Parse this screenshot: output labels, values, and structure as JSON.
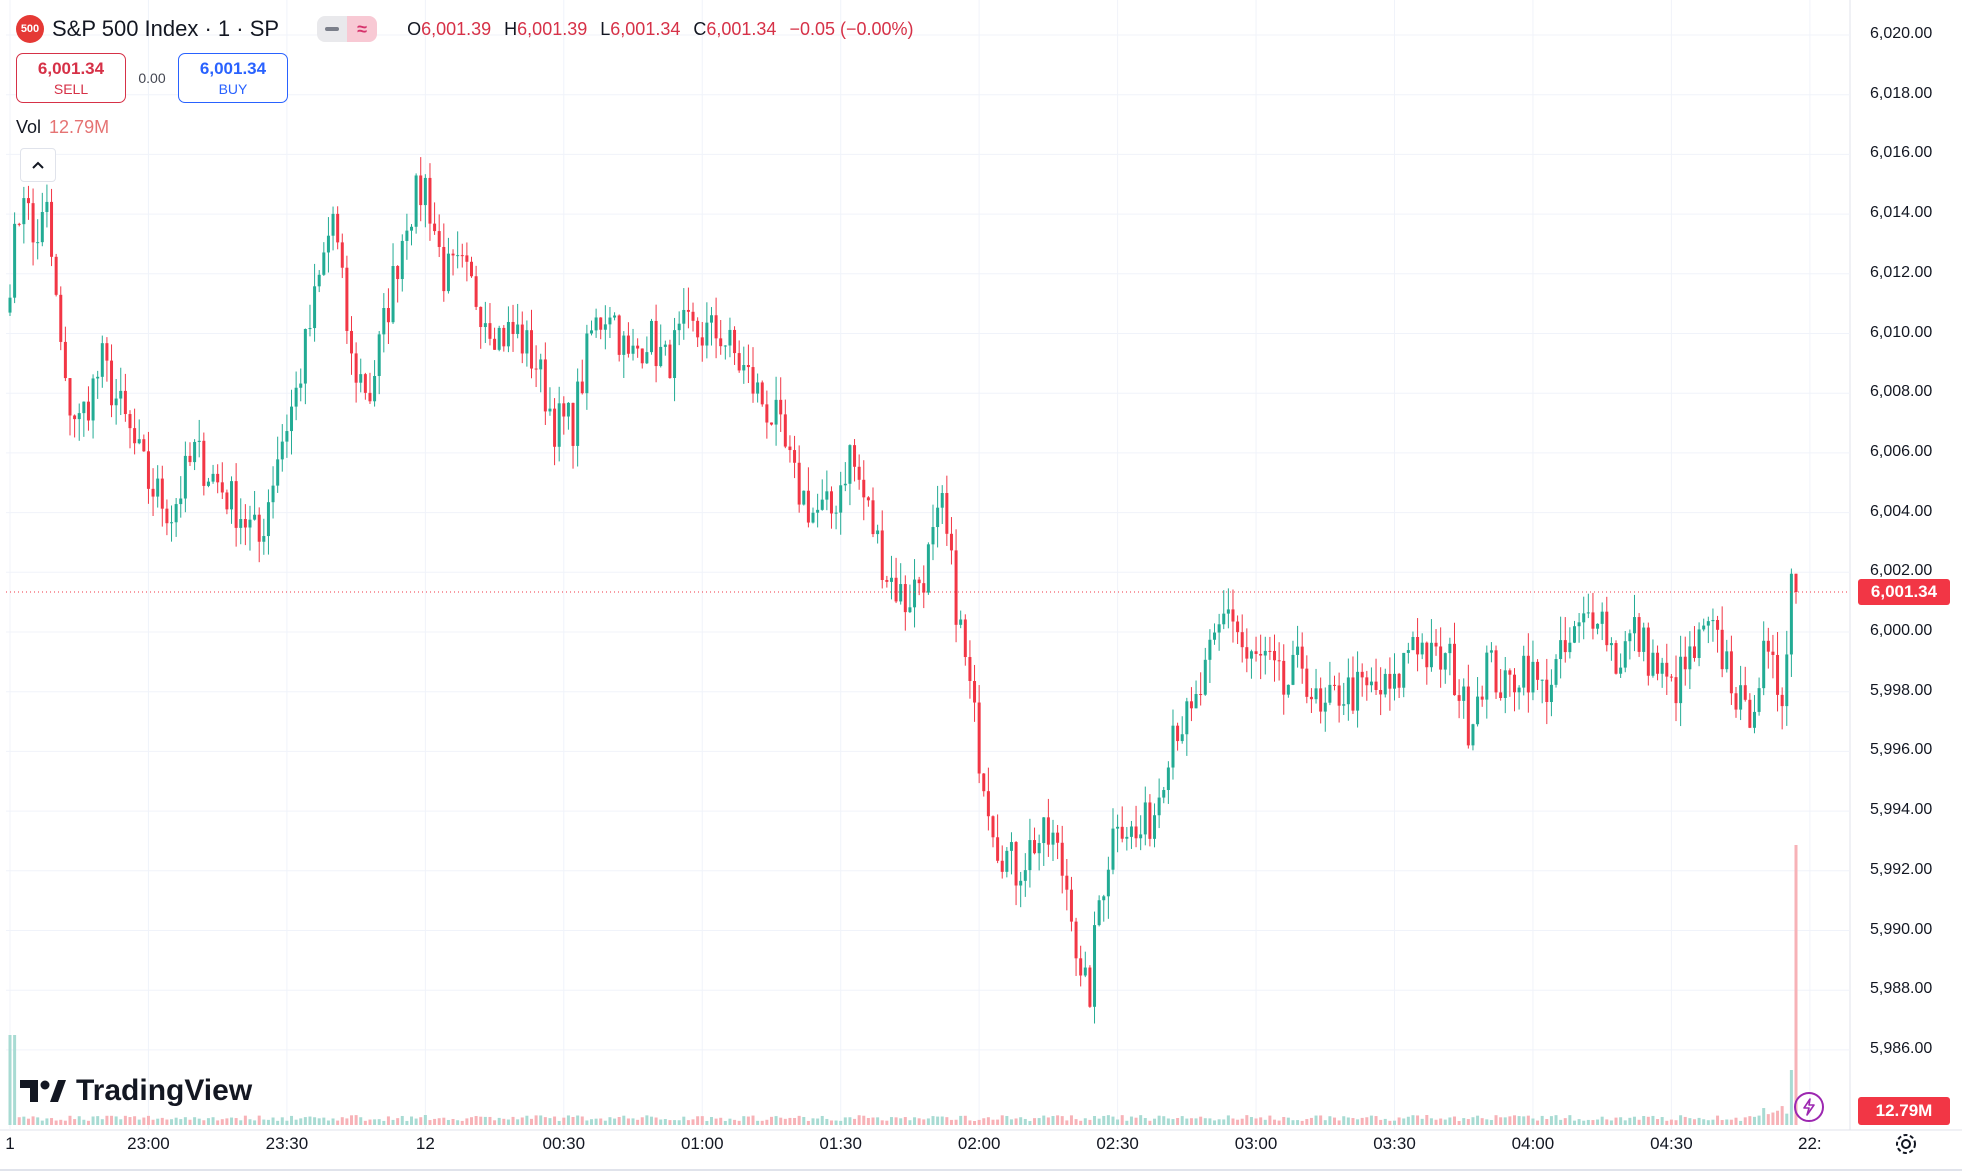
{
  "header": {
    "symbol_title": "S&P 500 Index · 1 · SP",
    "logo_text": "500",
    "ohlc": {
      "o_label": "O",
      "o_value": "6,001.39",
      "h_label": "H",
      "h_value": "6,001.39",
      "l_label": "L",
      "l_value": "6,001.34",
      "c_label": "C",
      "c_value": "6,001.34",
      "change": "−0.05 (−0.00%)"
    }
  },
  "trade": {
    "sell_price": "6,001.34",
    "sell_label": "SELL",
    "spread": "0.00",
    "buy_price": "6,001.34",
    "buy_label": "BUY"
  },
  "volume_legend": {
    "label": "Vol",
    "value": "12.79M"
  },
  "brand": {
    "name": "TradingView"
  },
  "price_tag": "6,001.34",
  "volume_tag": "12.79M",
  "colors": {
    "up": "#22ab94",
    "down": "#f23645",
    "vol_up": "#a8dbd3",
    "vol_down": "#f7b2b7"
  },
  "chart_data": {
    "type": "candlestick",
    "y_axis": {
      "min": 5985,
      "max": 6021,
      "ticks": [
        6020,
        6018,
        6016,
        6014,
        6012,
        6010,
        6008,
        6006,
        6004,
        6002,
        6000,
        5998,
        5996,
        5994,
        5992,
        5990,
        5988,
        5986
      ],
      "tick_labels": [
        "6,020.00",
        "6,018.00",
        "6,016.00",
        "6,014.00",
        "6,012.00",
        "6,010.00",
        "6,008.00",
        "6,006.00",
        "6,004.00",
        "6,002.00",
        "6,000.00",
        "5,998.00",
        "5,996.00",
        "5,994.00",
        "5,992.00",
        "5,990.00",
        "5,988.00",
        "5,986.00"
      ],
      "position": "right"
    },
    "x_axis": {
      "ticks": [
        {
          "label": "1",
          "minute": 0
        },
        {
          "label": "23:00",
          "minute": 30
        },
        {
          "label": "23:30",
          "minute": 60
        },
        {
          "label": "12",
          "minute": 90
        },
        {
          "label": "00:30",
          "minute": 120
        },
        {
          "label": "01:00",
          "minute": 150
        },
        {
          "label": "01:30",
          "minute": 180
        },
        {
          "label": "02:00",
          "minute": 210
        },
        {
          "label": "02:30",
          "minute": 240
        },
        {
          "label": "03:00",
          "minute": 270
        },
        {
          "label": "03:30",
          "minute": 300
        },
        {
          "label": "04:00",
          "minute": 330
        },
        {
          "label": "04:30",
          "minute": 360
        },
        {
          "label": "22:",
          "minute": 390
        }
      ]
    },
    "close_path": [
      [
        0,
        6012
      ],
      [
        3,
        6015
      ],
      [
        5,
        6013
      ],
      [
        8,
        6014
      ],
      [
        12,
        6008
      ],
      [
        15,
        6007
      ],
      [
        20,
        6009
      ],
      [
        25,
        6007
      ],
      [
        30,
        6005
      ],
      [
        35,
        6004
      ],
      [
        40,
        6006
      ],
      [
        45,
        6005
      ],
      [
        50,
        6004
      ],
      [
        54,
        6003
      ],
      [
        58,
        6006
      ],
      [
        62,
        6008
      ],
      [
        66,
        6011
      ],
      [
        70,
        6014
      ],
      [
        74,
        6009
      ],
      [
        78,
        6008
      ],
      [
        82,
        6011
      ],
      [
        86,
        6014
      ],
      [
        90,
        6015
      ],
      [
        94,
        6012
      ],
      [
        98,
        6012
      ],
      [
        102,
        6011
      ],
      [
        106,
        6010
      ],
      [
        110,
        6010
      ],
      [
        114,
        6009
      ],
      [
        118,
        6007
      ],
      [
        122,
        6007
      ],
      [
        126,
        6010
      ],
      [
        130,
        6011
      ],
      [
        134,
        6009
      ],
      [
        138,
        6010
      ],
      [
        142,
        6009
      ],
      [
        146,
        6010
      ],
      [
        150,
        6010
      ],
      [
        154,
        6010
      ],
      [
        158,
        6009
      ],
      [
        162,
        6008
      ],
      [
        166,
        6007
      ],
      [
        170,
        6005
      ],
      [
        174,
        6004
      ],
      [
        178,
        6004
      ],
      [
        182,
        6006
      ],
      [
        186,
        6004
      ],
      [
        190,
        6002
      ],
      [
        194,
        6001
      ],
      [
        198,
        6002
      ],
      [
        202,
        6004
      ],
      [
        206,
        6000
      ],
      [
        210,
        5996
      ],
      [
        214,
        5993
      ],
      [
        218,
        5992
      ],
      [
        222,
        5993
      ],
      [
        226,
        5993
      ],
      [
        230,
        5991
      ],
      [
        232,
        5988
      ],
      [
        234,
        5988
      ],
      [
        236,
        5991
      ],
      [
        240,
        5994
      ],
      [
        244,
        5993
      ],
      [
        248,
        5994
      ],
      [
        252,
        5997
      ],
      [
        256,
        5997
      ],
      [
        260,
        5999
      ],
      [
        264,
        6001
      ],
      [
        268,
        5999
      ],
      [
        272,
        5999
      ],
      [
        276,
        5998
      ],
      [
        280,
        5999
      ],
      [
        284,
        5997
      ],
      [
        288,
        5998
      ],
      [
        292,
        5998
      ],
      [
        296,
        5998
      ],
      [
        300,
        5998
      ],
      [
        304,
        6000
      ],
      [
        308,
        5999
      ],
      [
        312,
        5999
      ],
      [
        316,
        5997
      ],
      [
        320,
        5999
      ],
      [
        324,
        5998
      ],
      [
        328,
        5999
      ],
      [
        332,
        5998
      ],
      [
        336,
        5999
      ],
      [
        340,
        6000
      ],
      [
        344,
        6001
      ],
      [
        348,
        5999
      ],
      [
        352,
        6000
      ],
      [
        356,
        5999
      ],
      [
        360,
        5998
      ],
      [
        364,
        5999
      ],
      [
        368,
        6000
      ],
      [
        372,
        5999
      ],
      [
        376,
        5997
      ],
      [
        380,
        5999
      ],
      [
        384,
        5998
      ],
      [
        386,
        6002
      ],
      [
        387,
        6001.34
      ]
    ],
    "last_price": 6001.34,
    "volume_series": {
      "name": "Vol",
      "last_value": "12.79M",
      "position": "bottom"
    }
  }
}
